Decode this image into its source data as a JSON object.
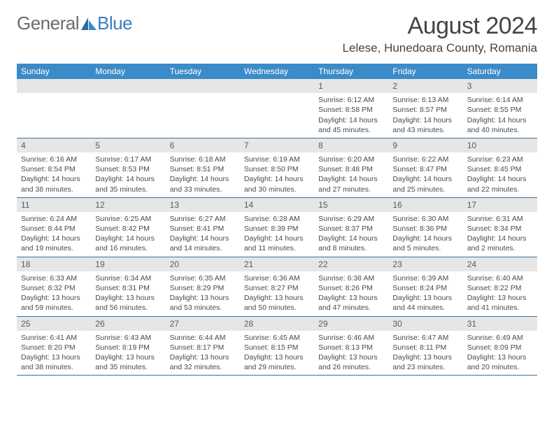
{
  "logo": {
    "part1": "General",
    "part2": "Blue"
  },
  "title": "August 2024",
  "location": "Lelese, Hunedoara County, Romania",
  "colors": {
    "header_bg": "#3b8bc9",
    "header_text": "#ffffff",
    "daynum_bg": "#e6e6e6",
    "text": "#4a4a4a",
    "border": "#3b6fa0",
    "logo_gray": "#6b6b6b",
    "logo_blue": "#3b7fc4"
  },
  "weekdays": [
    "Sunday",
    "Monday",
    "Tuesday",
    "Wednesday",
    "Thursday",
    "Friday",
    "Saturday"
  ],
  "weeks": [
    [
      null,
      null,
      null,
      null,
      {
        "n": "1",
        "sr": "Sunrise: 6:12 AM",
        "ss": "Sunset: 8:58 PM",
        "dl1": "Daylight: 14 hours",
        "dl2": "and 45 minutes."
      },
      {
        "n": "2",
        "sr": "Sunrise: 6:13 AM",
        "ss": "Sunset: 8:57 PM",
        "dl1": "Daylight: 14 hours",
        "dl2": "and 43 minutes."
      },
      {
        "n": "3",
        "sr": "Sunrise: 6:14 AM",
        "ss": "Sunset: 8:55 PM",
        "dl1": "Daylight: 14 hours",
        "dl2": "and 40 minutes."
      }
    ],
    [
      {
        "n": "4",
        "sr": "Sunrise: 6:16 AM",
        "ss": "Sunset: 8:54 PM",
        "dl1": "Daylight: 14 hours",
        "dl2": "and 38 minutes."
      },
      {
        "n": "5",
        "sr": "Sunrise: 6:17 AM",
        "ss": "Sunset: 8:53 PM",
        "dl1": "Daylight: 14 hours",
        "dl2": "and 35 minutes."
      },
      {
        "n": "6",
        "sr": "Sunrise: 6:18 AM",
        "ss": "Sunset: 8:51 PM",
        "dl1": "Daylight: 14 hours",
        "dl2": "and 33 minutes."
      },
      {
        "n": "7",
        "sr": "Sunrise: 6:19 AM",
        "ss": "Sunset: 8:50 PM",
        "dl1": "Daylight: 14 hours",
        "dl2": "and 30 minutes."
      },
      {
        "n": "8",
        "sr": "Sunrise: 6:20 AM",
        "ss": "Sunset: 8:48 PM",
        "dl1": "Daylight: 14 hours",
        "dl2": "and 27 minutes."
      },
      {
        "n": "9",
        "sr": "Sunrise: 6:22 AM",
        "ss": "Sunset: 8:47 PM",
        "dl1": "Daylight: 14 hours",
        "dl2": "and 25 minutes."
      },
      {
        "n": "10",
        "sr": "Sunrise: 6:23 AM",
        "ss": "Sunset: 8:45 PM",
        "dl1": "Daylight: 14 hours",
        "dl2": "and 22 minutes."
      }
    ],
    [
      {
        "n": "11",
        "sr": "Sunrise: 6:24 AM",
        "ss": "Sunset: 8:44 PM",
        "dl1": "Daylight: 14 hours",
        "dl2": "and 19 minutes."
      },
      {
        "n": "12",
        "sr": "Sunrise: 6:25 AM",
        "ss": "Sunset: 8:42 PM",
        "dl1": "Daylight: 14 hours",
        "dl2": "and 16 minutes."
      },
      {
        "n": "13",
        "sr": "Sunrise: 6:27 AM",
        "ss": "Sunset: 8:41 PM",
        "dl1": "Daylight: 14 hours",
        "dl2": "and 14 minutes."
      },
      {
        "n": "14",
        "sr": "Sunrise: 6:28 AM",
        "ss": "Sunset: 8:39 PM",
        "dl1": "Daylight: 14 hours",
        "dl2": "and 11 minutes."
      },
      {
        "n": "15",
        "sr": "Sunrise: 6:29 AM",
        "ss": "Sunset: 8:37 PM",
        "dl1": "Daylight: 14 hours",
        "dl2": "and 8 minutes."
      },
      {
        "n": "16",
        "sr": "Sunrise: 6:30 AM",
        "ss": "Sunset: 8:36 PM",
        "dl1": "Daylight: 14 hours",
        "dl2": "and 5 minutes."
      },
      {
        "n": "17",
        "sr": "Sunrise: 6:31 AM",
        "ss": "Sunset: 8:34 PM",
        "dl1": "Daylight: 14 hours",
        "dl2": "and 2 minutes."
      }
    ],
    [
      {
        "n": "18",
        "sr": "Sunrise: 6:33 AM",
        "ss": "Sunset: 8:32 PM",
        "dl1": "Daylight: 13 hours",
        "dl2": "and 59 minutes."
      },
      {
        "n": "19",
        "sr": "Sunrise: 6:34 AM",
        "ss": "Sunset: 8:31 PM",
        "dl1": "Daylight: 13 hours",
        "dl2": "and 56 minutes."
      },
      {
        "n": "20",
        "sr": "Sunrise: 6:35 AM",
        "ss": "Sunset: 8:29 PM",
        "dl1": "Daylight: 13 hours",
        "dl2": "and 53 minutes."
      },
      {
        "n": "21",
        "sr": "Sunrise: 6:36 AM",
        "ss": "Sunset: 8:27 PM",
        "dl1": "Daylight: 13 hours",
        "dl2": "and 50 minutes."
      },
      {
        "n": "22",
        "sr": "Sunrise: 6:38 AM",
        "ss": "Sunset: 8:26 PM",
        "dl1": "Daylight: 13 hours",
        "dl2": "and 47 minutes."
      },
      {
        "n": "23",
        "sr": "Sunrise: 6:39 AM",
        "ss": "Sunset: 8:24 PM",
        "dl1": "Daylight: 13 hours",
        "dl2": "and 44 minutes."
      },
      {
        "n": "24",
        "sr": "Sunrise: 6:40 AM",
        "ss": "Sunset: 8:22 PM",
        "dl1": "Daylight: 13 hours",
        "dl2": "and 41 minutes."
      }
    ],
    [
      {
        "n": "25",
        "sr": "Sunrise: 6:41 AM",
        "ss": "Sunset: 8:20 PM",
        "dl1": "Daylight: 13 hours",
        "dl2": "and 38 minutes."
      },
      {
        "n": "26",
        "sr": "Sunrise: 6:43 AM",
        "ss": "Sunset: 8:19 PM",
        "dl1": "Daylight: 13 hours",
        "dl2": "and 35 minutes."
      },
      {
        "n": "27",
        "sr": "Sunrise: 6:44 AM",
        "ss": "Sunset: 8:17 PM",
        "dl1": "Daylight: 13 hours",
        "dl2": "and 32 minutes."
      },
      {
        "n": "28",
        "sr": "Sunrise: 6:45 AM",
        "ss": "Sunset: 8:15 PM",
        "dl1": "Daylight: 13 hours",
        "dl2": "and 29 minutes."
      },
      {
        "n": "29",
        "sr": "Sunrise: 6:46 AM",
        "ss": "Sunset: 8:13 PM",
        "dl1": "Daylight: 13 hours",
        "dl2": "and 26 minutes."
      },
      {
        "n": "30",
        "sr": "Sunrise: 6:47 AM",
        "ss": "Sunset: 8:11 PM",
        "dl1": "Daylight: 13 hours",
        "dl2": "and 23 minutes."
      },
      {
        "n": "31",
        "sr": "Sunrise: 6:49 AM",
        "ss": "Sunset: 8:09 PM",
        "dl1": "Daylight: 13 hours",
        "dl2": "and 20 minutes."
      }
    ]
  ]
}
